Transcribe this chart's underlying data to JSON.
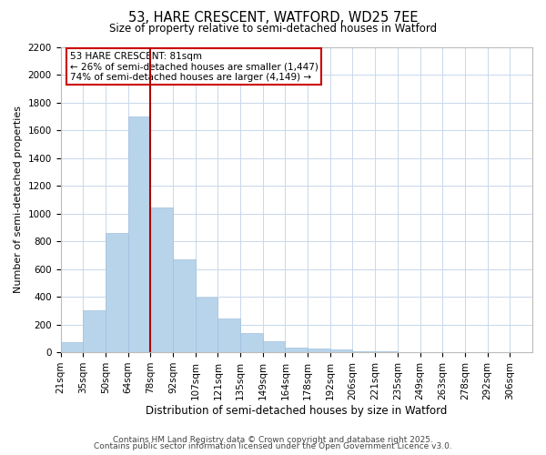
{
  "title": "53, HARE CRESCENT, WATFORD, WD25 7EE",
  "subtitle": "Size of property relative to semi-detached houses in Watford",
  "xlabel": "Distribution of semi-detached houses by size in Watford",
  "ylabel": "Number of semi-detached properties",
  "bar_labels": [
    "21sqm",
    "35sqm",
    "50sqm",
    "64sqm",
    "78sqm",
    "92sqm",
    "107sqm",
    "121sqm",
    "135sqm",
    "149sqm",
    "164sqm",
    "178sqm",
    "192sqm",
    "206sqm",
    "221sqm",
    "235sqm",
    "249sqm",
    "263sqm",
    "278sqm",
    "292sqm",
    "306sqm"
  ],
  "bar_values": [
    70,
    305,
    860,
    1700,
    1040,
    670,
    395,
    245,
    140,
    80,
    35,
    25,
    20,
    10,
    5,
    3,
    2,
    1,
    1,
    0
  ],
  "bar_color": "#b8d4ea",
  "bar_edge_color": "#a0c0de",
  "marker_line_color": "#aa0000",
  "annotation_title": "53 HARE CRESCENT: 81sqm",
  "annotation_line1": "← 26% of semi-detached houses are smaller (1,447)",
  "annotation_line2": "74% of semi-detached houses are larger (4,149) →",
  "annotation_box_edge_color": "#cc0000",
  "ylim": [
    0,
    2200
  ],
  "yticks": [
    0,
    200,
    400,
    600,
    800,
    1000,
    1200,
    1400,
    1600,
    1800,
    2000,
    2200
  ],
  "footer1": "Contains HM Land Registry data © Crown copyright and database right 2025.",
  "footer2": "Contains public sector information licensed under the Open Government Licence v3.0.",
  "background_color": "#ffffff",
  "grid_color": "#c8d8ea",
  "title_fontsize": 10.5,
  "subtitle_fontsize": 8.5,
  "ylabel_fontsize": 8,
  "xlabel_fontsize": 8.5,
  "tick_fontsize": 7.5,
  "annotation_fontsize": 7.5,
  "footer_fontsize": 6.5
}
